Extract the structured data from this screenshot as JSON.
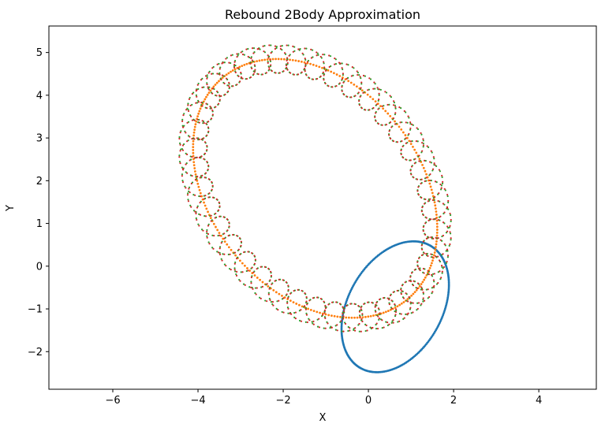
{
  "chart_data": {
    "type": "scatter",
    "title": "Rebound 2Body Approximation",
    "xlabel": "X",
    "ylabel": "Y",
    "xlim": [
      -7.5,
      5.35
    ],
    "ylim": [
      -2.88,
      5.62
    ],
    "xticks": [
      -6,
      -4,
      -2,
      0,
      2,
      4
    ],
    "xtick_labels": [
      "−6",
      "−4",
      "−2",
      "0",
      "2",
      "4"
    ],
    "yticks": [
      -2,
      -1,
      0,
      1,
      2,
      3,
      4,
      5
    ],
    "ytick_labels": [
      "−2",
      "−1",
      "0",
      "1",
      "2",
      "3",
      "4",
      "5"
    ],
    "grid": false,
    "legend": "none",
    "series": [
      {
        "color": "#1f77b4",
        "kind": "ellipse",
        "center": [
          0.63,
          -0.95
        ],
        "semi_axes": [
          1.65,
          1.1
        ],
        "rotation_deg": 60
      },
      {
        "color": "#ff7f0e",
        "kind": "ellipse",
        "center": [
          -1.25,
          1.82
        ],
        "semi_axes": [
          3.38,
          2.44
        ],
        "rotation_deg": -50
      },
      {
        "color": "#2ca02c",
        "kind": "epicycle",
        "center": [
          -1.25,
          1.82
        ],
        "semi_axes": [
          3.38,
          2.44
        ],
        "rotation_deg": -50,
        "loop_radius": 0.33,
        "loop_count": 40
      },
      {
        "color": "#d62728",
        "kind": "epicycle",
        "center": [
          -1.25,
          1.82
        ],
        "semi_axes": [
          3.38,
          2.44
        ],
        "rotation_deg": -50,
        "loop_radius": 0.33,
        "loop_count": 40
      }
    ]
  }
}
